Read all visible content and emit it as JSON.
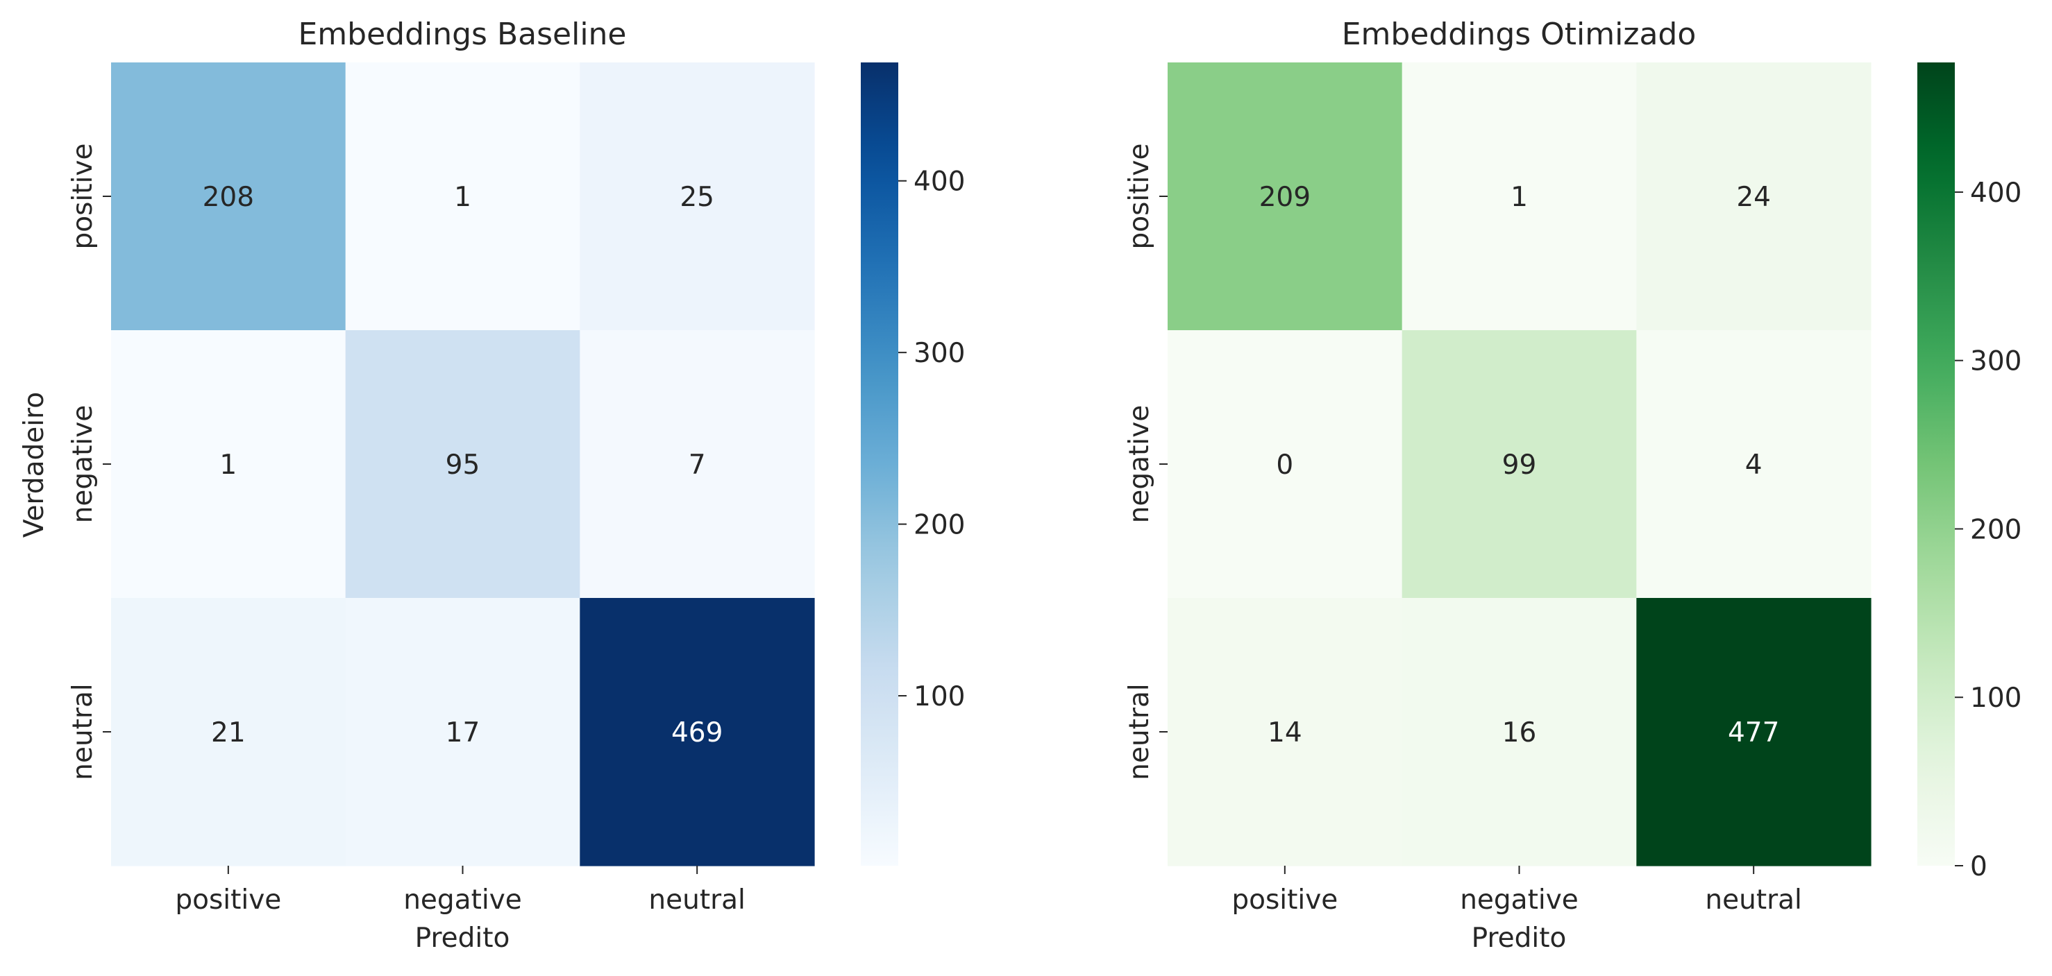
{
  "chart_data": [
    {
      "type": "heatmap",
      "title": "Embeddings Baseline",
      "xlabel": "Predito",
      "ylabel": "Verdadeiro",
      "categories": [
        "positive",
        "negative",
        "neutral"
      ],
      "row_categories": [
        "positive",
        "negative",
        "neutral"
      ],
      "values": [
        [
          208,
          1,
          25
        ],
        [
          1,
          95,
          7
        ],
        [
          21,
          17,
          469
        ]
      ],
      "colormap": "Blues",
      "colormap_light": "#f7fbff",
      "colormap_dark": "#08306b",
      "color_range": [
        1,
        469
      ],
      "colorbar_ticks": [
        100,
        200,
        300,
        400
      ]
    },
    {
      "type": "heatmap",
      "title": "Embeddings Otimizado",
      "xlabel": "Predito",
      "ylabel": "",
      "categories": [
        "positive",
        "negative",
        "neutral"
      ],
      "row_categories": [
        "positive",
        "negative",
        "neutral"
      ],
      "values": [
        [
          209,
          1,
          24
        ],
        [
          0,
          99,
          4
        ],
        [
          14,
          16,
          477
        ]
      ],
      "colormap": "Greens",
      "colormap_light": "#f7fcf5",
      "colormap_dark": "#00441b",
      "color_range": [
        0,
        477
      ],
      "colorbar_ticks": [
        0,
        100,
        200,
        300,
        400
      ]
    }
  ]
}
